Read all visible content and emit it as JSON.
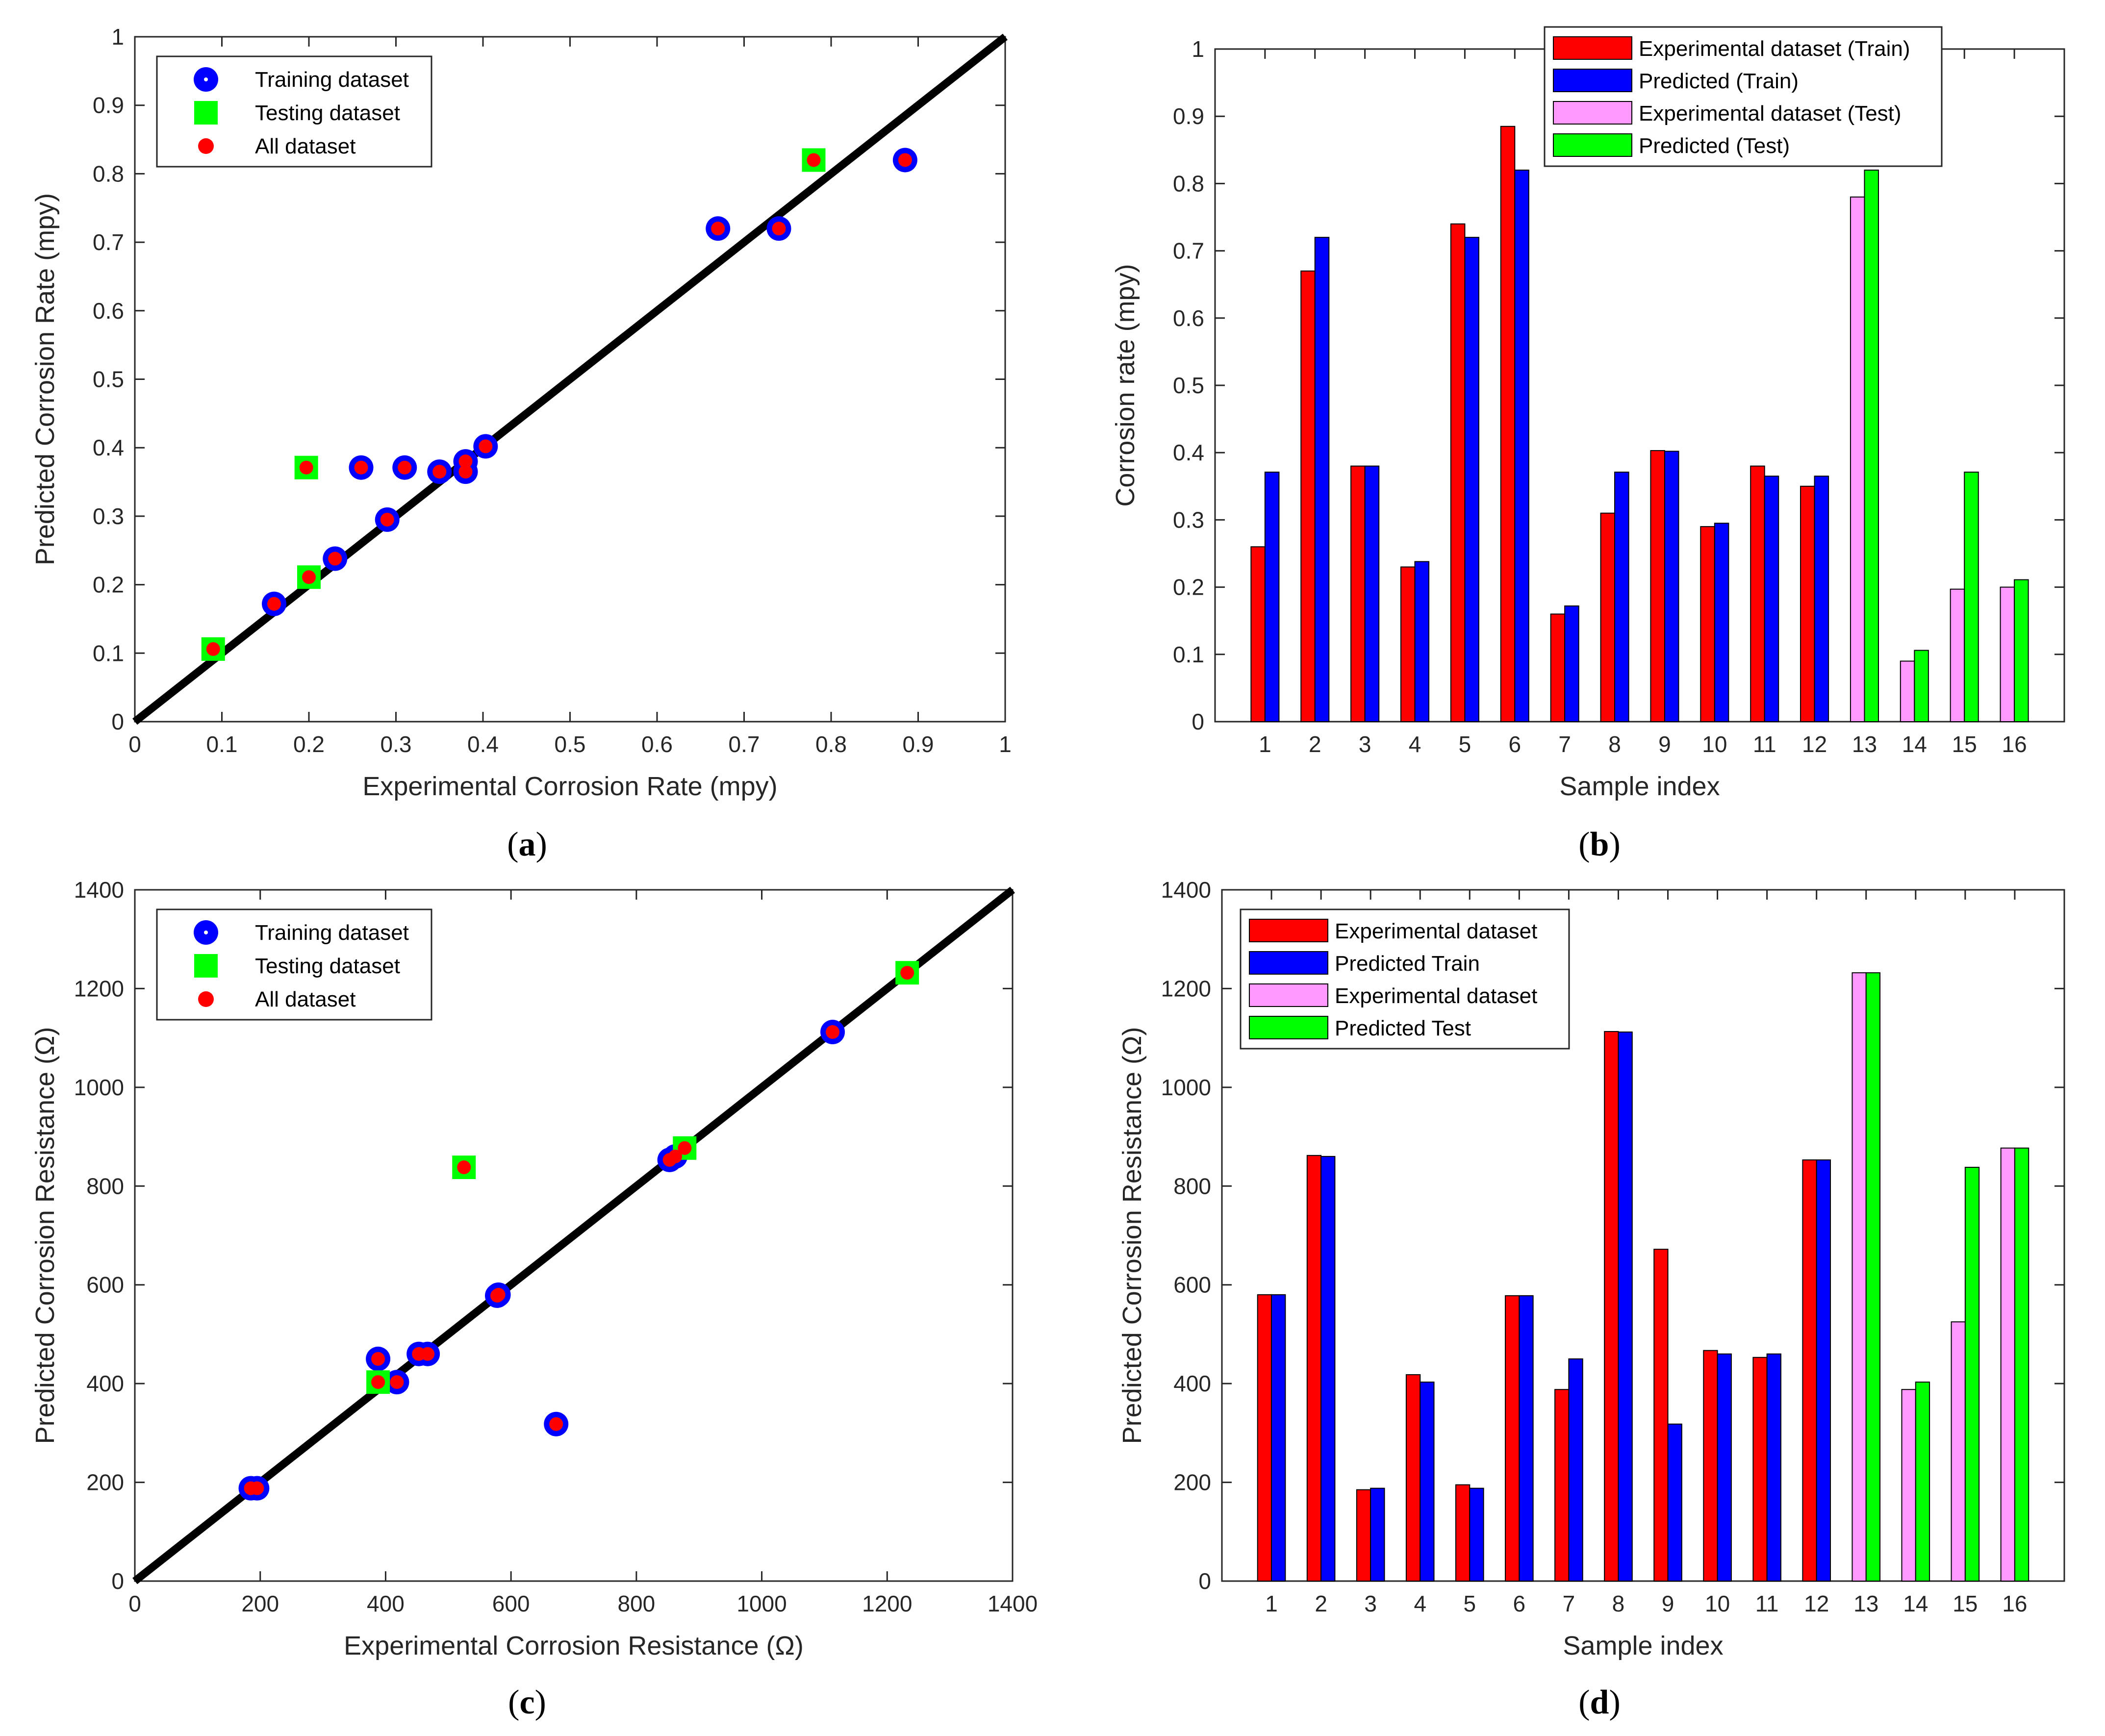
{
  "colors": {
    "red": "#ff0000",
    "blue": "#0000ff",
    "green": "#00ff00",
    "pink": "#ff99ff",
    "identity_line": "#000000",
    "axis": "#262626"
  },
  "chart_data": [
    {
      "panel": "(a)",
      "type": "scatter",
      "xlabel": "Experimental Corrosion Rate (mpy)",
      "ylabel": "Predicted Corrosion Rate (mpy)",
      "xlim": [
        0,
        1
      ],
      "ylim": [
        0,
        1
      ],
      "xticks": [
        "0",
        "0.1",
        "0.2",
        "0.3",
        "0.4",
        "0.5",
        "0.6",
        "0.7",
        "0.8",
        "0.9",
        "1"
      ],
      "yticks": [
        "0",
        "0.1",
        "0.2",
        "0.3",
        "0.4",
        "0.5",
        "0.6",
        "0.7",
        "0.8",
        "0.9",
        "1"
      ],
      "identity_line": true,
      "legend": "top-left",
      "series": [
        {
          "name": "Training dataset",
          "marker": "circle",
          "x": [
            0.26,
            0.67,
            0.38,
            0.23,
            0.74,
            0.885,
            0.16,
            0.31,
            0.403,
            0.29,
            0.38,
            0.35
          ],
          "y": [
            0.371,
            0.72,
            0.38,
            0.238,
            0.72,
            0.82,
            0.172,
            0.371,
            0.402,
            0.295,
            0.365,
            0.365
          ]
        },
        {
          "name": "Testing  dataset",
          "marker": "square",
          "x": [
            0.78,
            0.09,
            0.197,
            0.2
          ],
          "y": [
            0.82,
            0.106,
            0.371,
            0.211
          ]
        },
        {
          "name": "All dataset",
          "marker": "dot",
          "x": [
            0.26,
            0.67,
            0.38,
            0.23,
            0.74,
            0.885,
            0.16,
            0.31,
            0.403,
            0.29,
            0.38,
            0.35,
            0.78,
            0.09,
            0.197,
            0.2
          ],
          "y": [
            0.371,
            0.72,
            0.38,
            0.238,
            0.72,
            0.82,
            0.172,
            0.371,
            0.402,
            0.295,
            0.365,
            0.365,
            0.82,
            0.106,
            0.371,
            0.211
          ]
        }
      ]
    },
    {
      "panel": "(b)",
      "type": "bar",
      "xlabel": "Sample index",
      "ylabel": "Corrosion rate (mpy)",
      "ylim": [
        0,
        1
      ],
      "yticks": [
        "0",
        "0.1",
        "0.2",
        "0.3",
        "0.4",
        "0.5",
        "0.6",
        "0.7",
        "0.8",
        "0.9",
        "1"
      ],
      "categories": [
        "1",
        "2",
        "3",
        "4",
        "5",
        "6",
        "7",
        "8",
        "9",
        "10",
        "11",
        "12",
        "13",
        "14",
        "15",
        "16"
      ],
      "legend": "top-center",
      "series": [
        {
          "name": "Experimental dataset (Train)",
          "values": [
            0.26,
            0.67,
            0.38,
            0.23,
            0.74,
            0.885,
            0.16,
            0.31,
            0.403,
            0.29,
            0.38,
            0.35,
            null,
            null,
            null,
            null
          ]
        },
        {
          "name": "Predicted (Train)",
          "values": [
            0.371,
            0.72,
            0.38,
            0.238,
            0.72,
            0.82,
            0.172,
            0.371,
            0.402,
            0.295,
            0.365,
            0.365,
            null,
            null,
            null,
            null
          ]
        },
        {
          "name": "Experimental dataset (Test)",
          "values": [
            null,
            null,
            null,
            null,
            null,
            null,
            null,
            null,
            null,
            null,
            null,
            null,
            0.78,
            0.09,
            0.197,
            0.2
          ]
        },
        {
          "name": "Predicted (Test)",
          "values": [
            null,
            null,
            null,
            null,
            null,
            null,
            null,
            null,
            null,
            null,
            null,
            null,
            0.82,
            0.106,
            0.371,
            0.211
          ]
        }
      ]
    },
    {
      "panel": "(c)",
      "type": "scatter",
      "xlabel": "Experimental Corrosion Resistance (Ω)",
      "ylabel": "Predicted Corrosion Resistance (Ω)",
      "xlim": [
        0,
        1400
      ],
      "ylim": [
        0,
        1400
      ],
      "xticks": [
        "0",
        "200",
        "400",
        "600",
        "800",
        "1000",
        "1200",
        "1400"
      ],
      "yticks": [
        "0",
        "200",
        "400",
        "600",
        "800",
        "1000",
        "1200",
        "1400"
      ],
      "identity_line": true,
      "legend": "top-left",
      "series": [
        {
          "name": "Training dataset",
          "marker": "circle",
          "x": [
            580,
            862,
            185,
            418,
            195,
            578,
            388,
            1113,
            672,
            467,
            453,
            853
          ],
          "y": [
            580,
            860,
            188,
            403,
            188,
            578,
            450,
            1112,
            318,
            460,
            460,
            853
          ]
        },
        {
          "name": "Testing  dataset",
          "marker": "square",
          "x": [
            1232,
            388,
            525,
            877
          ],
          "y": [
            1232,
            403,
            838,
            877
          ]
        },
        {
          "name": "All dataset",
          "marker": "dot",
          "x": [
            580,
            862,
            185,
            418,
            195,
            578,
            388,
            1113,
            672,
            467,
            453,
            853,
            1232,
            388,
            525,
            877
          ],
          "y": [
            580,
            860,
            188,
            403,
            188,
            578,
            450,
            1112,
            318,
            460,
            460,
            853,
            1232,
            403,
            838,
            877
          ]
        }
      ]
    },
    {
      "panel": "(d)",
      "type": "bar",
      "xlabel": "Sample index",
      "ylabel": "Predicted Corrosion Resistance (Ω)",
      "ylim": [
        0,
        1400
      ],
      "yticks": [
        "0",
        "200",
        "400",
        "600",
        "800",
        "1000",
        "1200",
        "1400"
      ],
      "categories": [
        "1",
        "2",
        "3",
        "4",
        "5",
        "6",
        "7",
        "8",
        "9",
        "10",
        "11",
        "12",
        "13",
        "14",
        "15",
        "16"
      ],
      "legend": "top-left",
      "series": [
        {
          "name": "Experimental dataset",
          "values": [
            580,
            862,
            185,
            418,
            195,
            578,
            388,
            1113,
            672,
            467,
            453,
            853,
            null,
            null,
            null,
            null
          ]
        },
        {
          "name": "Predicted Train",
          "values": [
            580,
            860,
            188,
            403,
            188,
            578,
            450,
            1112,
            318,
            460,
            460,
            853,
            null,
            null,
            null,
            null
          ]
        },
        {
          "name": "Experimental dataset",
          "values": [
            null,
            null,
            null,
            null,
            null,
            null,
            null,
            null,
            null,
            null,
            null,
            null,
            1232,
            388,
            525,
            877
          ]
        },
        {
          "name": "Predicted Test",
          "values": [
            null,
            null,
            null,
            null,
            null,
            null,
            null,
            null,
            null,
            null,
            null,
            null,
            1232,
            403,
            838,
            877
          ]
        }
      ]
    }
  ]
}
